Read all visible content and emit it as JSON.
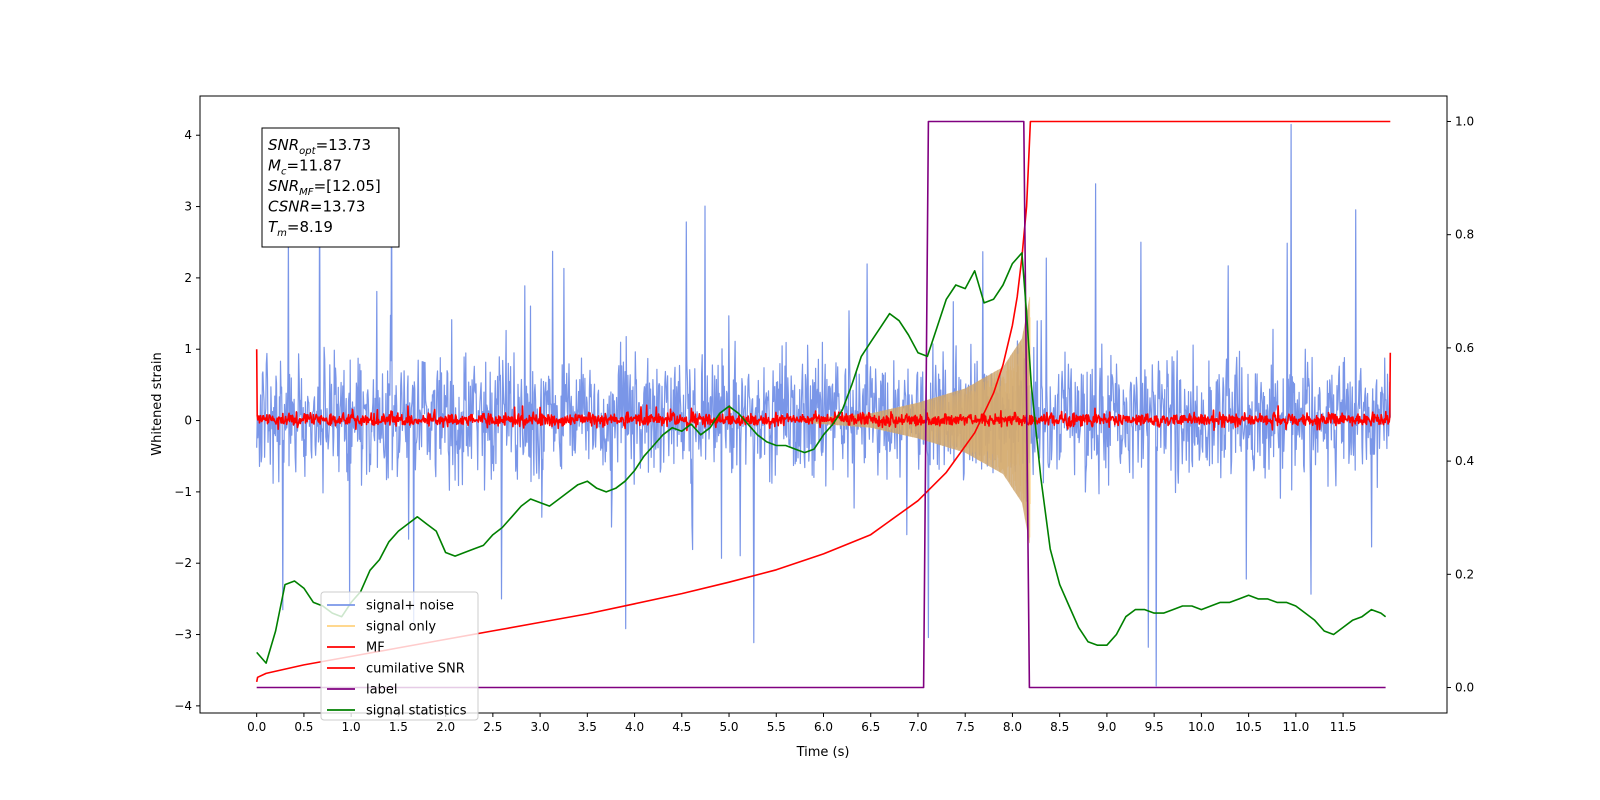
{
  "chart_data": {
    "type": "line",
    "xlabel": "Time (s)",
    "ylabel": "Whitened strain",
    "xlim": [
      -0.6,
      12.6
    ],
    "ylim": [
      -4.1,
      4.55
    ],
    "ylim_right": [
      -0.045,
      1.045
    ],
    "xticks": [
      0.0,
      0.5,
      1.0,
      1.5,
      2.0,
      2.5,
      3.0,
      3.5,
      4.0,
      4.5,
      5.0,
      5.5,
      6.0,
      6.5,
      7.0,
      7.5,
      8.0,
      8.5,
      9.0,
      9.5,
      10.0,
      10.5,
      11.0,
      11.5
    ],
    "xtick_labels": [
      "0.0",
      "0.5",
      "1.0",
      "1.5",
      "2.0",
      "2.5",
      "3.0",
      "3.5",
      "4.0",
      "4.5",
      "5.0",
      "5.5",
      "6.0",
      "6.5",
      "7.0",
      "7.5",
      "8.0",
      "8.5",
      "9.0",
      "9.5",
      "10.0",
      "10.5",
      "11.0",
      "11.5"
    ],
    "yticks": [
      -4,
      -3,
      -2,
      -1,
      0,
      1,
      2,
      3,
      4
    ],
    "ytick_labels": [
      "−4",
      "−3",
      "−2",
      "−1",
      "0",
      "1",
      "2",
      "3",
      "4"
    ],
    "yticks_right": [
      0.0,
      0.2,
      0.4,
      0.6,
      0.8,
      1.0
    ],
    "ytick_right_labels": [
      "0.0",
      "0.2",
      "0.4",
      "0.6",
      "0.8",
      "1.0"
    ],
    "grid": false,
    "legend_position": "lower-left",
    "annotation": {
      "lines": [
        {
          "sym": "SNR",
          "sub": "opt",
          "value": "=13.73"
        },
        {
          "sym": "M",
          "sub": "c",
          "value": "=11.87"
        },
        {
          "sym": "SNR",
          "sub": "MF",
          "value": "=[12.05]"
        },
        {
          "sym": "CSNR",
          "sub": "",
          "value": "=13.73"
        },
        {
          "sym": "T",
          "sub": "m",
          "value": "=8.19"
        }
      ]
    },
    "series": [
      {
        "name": "signal+ noise",
        "axis": "left",
        "color": "#7a96e8",
        "kind": "noise",
        "x_range": [
          0.0,
          12.0
        ],
        "center": 0.1,
        "band": [
          -1.2,
          1.3
        ],
        "spike_range": [
          -3.2,
          3.5
        ],
        "outliers": [
          {
            "x": 9.52,
            "y": -3.72
          },
          {
            "x": 10.95,
            "y": 4.15
          }
        ]
      },
      {
        "name": "signal only",
        "axis": "left",
        "color": "#ffd27f",
        "kind": "chirp",
        "x_range": [
          5.8,
          8.19
        ],
        "envelope": [
          [
            5.8,
            0.03
          ],
          [
            6.5,
            0.1
          ],
          [
            7.0,
            0.25
          ],
          [
            7.5,
            0.45
          ],
          [
            7.9,
            0.75
          ],
          [
            8.1,
            1.15
          ],
          [
            8.19,
            1.8
          ]
        ]
      },
      {
        "name": "MF",
        "axis": "left",
        "color": "#ff0000",
        "kind": "noise",
        "x_range": [
          0.0,
          12.0
        ],
        "center": 0.0,
        "band": [
          -0.12,
          0.14
        ],
        "spike_range": [
          -0.15,
          0.22
        ],
        "endpoints": [
          {
            "x": 0.0,
            "y": 1.0
          },
          {
            "x": 12.0,
            "y": 0.95
          }
        ]
      },
      {
        "name": "cumilative SNR",
        "axis": "right",
        "color": "#ff0000",
        "kind": "line",
        "x": [
          0.0,
          0.01,
          0.1,
          0.5,
          1.0,
          1.5,
          2.0,
          2.5,
          3.0,
          3.5,
          4.0,
          4.5,
          5.0,
          5.5,
          6.0,
          6.5,
          7.0,
          7.3,
          7.6,
          7.8,
          7.9,
          8.0,
          8.05,
          8.1,
          8.15,
          8.19,
          8.5,
          9.0,
          10.0,
          11.0,
          12.0
        ],
        "values": [
          0.01,
          0.018,
          0.025,
          0.04,
          0.055,
          0.07,
          0.085,
          0.1,
          0.115,
          0.13,
          0.148,
          0.166,
          0.186,
          0.208,
          0.236,
          0.27,
          0.33,
          0.38,
          0.45,
          0.52,
          0.57,
          0.64,
          0.69,
          0.76,
          0.85,
          1.0,
          1.0,
          1.0,
          1.0,
          1.0,
          1.0
        ]
      },
      {
        "name": "label",
        "axis": "right",
        "color": "#800080",
        "kind": "line",
        "x": [
          0.0,
          7.06,
          7.11,
          8.12,
          8.18,
          11.95
        ],
        "values": [
          0.0,
          0.0,
          1.0,
          1.0,
          0.0,
          0.0
        ]
      },
      {
        "name": "signal statistics",
        "axis": "left",
        "color": "#008000",
        "kind": "line",
        "x": [
          0.0,
          0.1,
          0.2,
          0.3,
          0.4,
          0.5,
          0.6,
          0.7,
          0.8,
          0.9,
          1.0,
          1.1,
          1.2,
          1.3,
          1.4,
          1.5,
          1.6,
          1.7,
          1.8,
          1.9,
          2.0,
          2.1,
          2.2,
          2.3,
          2.4,
          2.5,
          2.6,
          2.7,
          2.8,
          2.9,
          3.0,
          3.1,
          3.2,
          3.3,
          3.4,
          3.5,
          3.6,
          3.7,
          3.8,
          3.9,
          4.0,
          4.1,
          4.2,
          4.3,
          4.4,
          4.5,
          4.6,
          4.7,
          4.8,
          4.9,
          5.0,
          5.1,
          5.2,
          5.3,
          5.4,
          5.5,
          5.6,
          5.7,
          5.8,
          5.9,
          6.0,
          6.1,
          6.2,
          6.3,
          6.4,
          6.5,
          6.6,
          6.7,
          6.8,
          6.9,
          7.0,
          7.1,
          7.2,
          7.3,
          7.4,
          7.5,
          7.6,
          7.7,
          7.8,
          7.9,
          8.0,
          8.1,
          8.15,
          8.2,
          8.3,
          8.4,
          8.5,
          8.6,
          8.7,
          8.8,
          8.9,
          9.0,
          9.1,
          9.2,
          9.3,
          9.4,
          9.5,
          9.6,
          9.7,
          9.8,
          9.9,
          10.0,
          10.1,
          10.2,
          10.3,
          10.4,
          10.5,
          10.6,
          10.7,
          10.8,
          10.9,
          11.0,
          11.1,
          11.2,
          11.3,
          11.4,
          11.5,
          11.6,
          11.7,
          11.8,
          11.9,
          11.95
        ],
        "values": [
          -3.25,
          -3.4,
          -2.95,
          -2.3,
          -2.25,
          -2.35,
          -2.55,
          -2.6,
          -2.7,
          -2.75,
          -2.55,
          -2.4,
          -2.1,
          -1.95,
          -1.7,
          -1.55,
          -1.45,
          -1.35,
          -1.45,
          -1.55,
          -1.85,
          -1.9,
          -1.85,
          -1.8,
          -1.75,
          -1.6,
          -1.5,
          -1.35,
          -1.2,
          -1.1,
          -1.15,
          -1.2,
          -1.1,
          -1.0,
          -0.9,
          -0.85,
          -0.95,
          -1.0,
          -0.95,
          -0.85,
          -0.7,
          -0.5,
          -0.35,
          -0.2,
          -0.1,
          -0.15,
          -0.05,
          -0.2,
          -0.1,
          0.1,
          0.2,
          0.1,
          -0.05,
          -0.2,
          -0.3,
          -0.35,
          -0.35,
          -0.4,
          -0.45,
          -0.4,
          -0.2,
          -0.05,
          0.15,
          0.5,
          0.9,
          1.1,
          1.3,
          1.5,
          1.4,
          1.2,
          0.95,
          0.9,
          1.3,
          1.7,
          1.9,
          1.85,
          2.1,
          1.65,
          1.7,
          1.9,
          2.2,
          2.35,
          1.5,
          0.5,
          -0.8,
          -1.8,
          -2.3,
          -2.6,
          -2.9,
          -3.1,
          -3.15,
          -3.15,
          -3.0,
          -2.75,
          -2.65,
          -2.65,
          -2.7,
          -2.7,
          -2.65,
          -2.6,
          -2.6,
          -2.65,
          -2.6,
          -2.55,
          -2.55,
          -2.5,
          -2.45,
          -2.5,
          -2.5,
          -2.55,
          -2.55,
          -2.6,
          -2.7,
          -2.8,
          -2.95,
          -3.0,
          -2.9,
          -2.8,
          -2.75,
          -2.65,
          -2.7,
          -2.75
        ]
      }
    ]
  }
}
